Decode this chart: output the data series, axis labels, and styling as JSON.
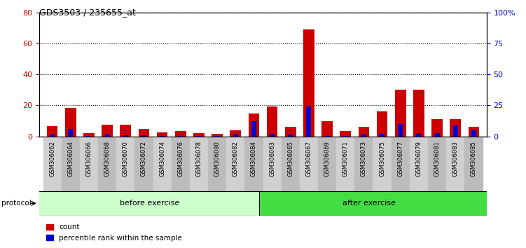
{
  "title": "GDS3503 / 235655_at",
  "categories": [
    "GSM306062",
    "GSM306064",
    "GSM306066",
    "GSM306068",
    "GSM306070",
    "GSM306072",
    "GSM306074",
    "GSM306076",
    "GSM306078",
    "GSM306080",
    "GSM306082",
    "GSM306084",
    "GSM306063",
    "GSM306065",
    "GSM306067",
    "GSM306069",
    "GSM306071",
    "GSM306073",
    "GSM306075",
    "GSM306077",
    "GSM306079",
    "GSM306081",
    "GSM306083",
    "GSM306085"
  ],
  "count_values": [
    6.5,
    18.5,
    2.0,
    7.5,
    7.5,
    5.0,
    2.5,
    3.5,
    2.0,
    1.5,
    4.0,
    15.0,
    19.5,
    6.0,
    69.0,
    10.0,
    3.5,
    6.0,
    16.0,
    30.0,
    30.0,
    11.0,
    11.0,
    6.0
  ],
  "percentile_values": [
    1.5,
    6.0,
    0.5,
    1.5,
    1.0,
    0.8,
    0.5,
    0.5,
    0.5,
    0.5,
    1.5,
    12.0,
    2.0,
    1.5,
    24.0,
    0.5,
    0.5,
    1.5,
    2.0,
    10.0,
    2.5,
    2.5,
    9.0,
    5.0
  ],
  "before_exercise_count": 12,
  "after_exercise_count": 12,
  "ylim_left": [
    0,
    80
  ],
  "ylim_right": [
    0,
    100
  ],
  "yticks_left": [
    0,
    20,
    40,
    60,
    80
  ],
  "yticks_right": [
    0,
    25,
    50,
    75,
    100
  ],
  "ytick_labels_right": [
    "0",
    "25",
    "50",
    "75",
    "100%"
  ],
  "bar_color_count": "#cc0000",
  "bar_color_percentile": "#0000cc",
  "before_color_light": "#ccffcc",
  "after_color_green": "#44dd44",
  "protocol_label": "protocol",
  "before_label": "before exercise",
  "after_label": "after exercise",
  "legend_count": "count",
  "legend_percentile": "percentile rank within the sample",
  "bar_width": 0.6,
  "tick_label_color_left": "#cc0000",
  "tick_label_color_right": "#0000cc",
  "gray_even": "#d0d0d0",
  "gray_odd": "#bcbcbc"
}
